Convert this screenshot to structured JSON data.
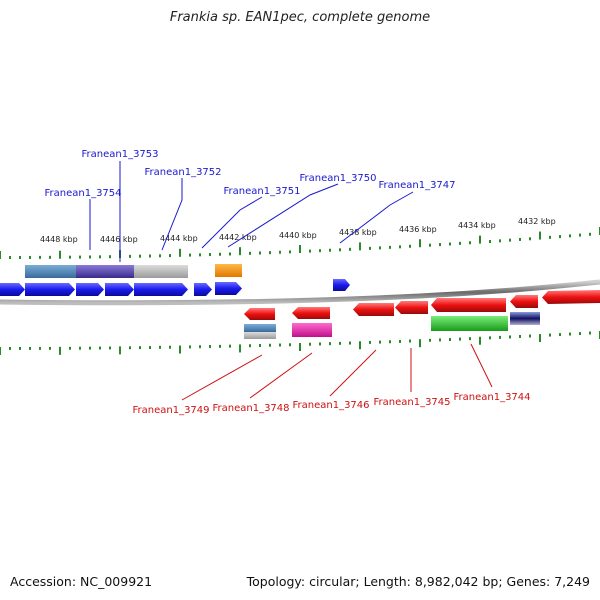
{
  "title": "Frankia sp. EAN1pec, complete genome",
  "footer": {
    "accession": "Accession: NC_009921",
    "summary": "Topology: circular; Length: 8,982,042 bp; Genes: 7,249"
  },
  "ruler": {
    "labels": [
      "4448 kbp",
      "4446 kbp",
      "4444 kbp",
      "4442 kbp",
      "4440 kbp",
      "4438 kbp",
      "4436 kbp",
      "4434 kbp",
      "4432 kbp"
    ]
  },
  "genes_top": [
    "Franean1_3753",
    "Franean1_3754",
    "Franean1_3752",
    "Franean1_3751",
    "Franean1_3750",
    "Franean1_3747"
  ],
  "genes_bottom": [
    "Franean1_3749",
    "Franean1_3748",
    "Franean1_3746",
    "Franean1_3745",
    "Franean1_3744"
  ],
  "colors": {
    "forward": "#1a1aee",
    "reverse": "#ee1111",
    "top_label": "#1a1acc",
    "bottom_label": "#cc1111",
    "ruler": "#2a8a2a",
    "backbone": "#7a7a7a"
  }
}
